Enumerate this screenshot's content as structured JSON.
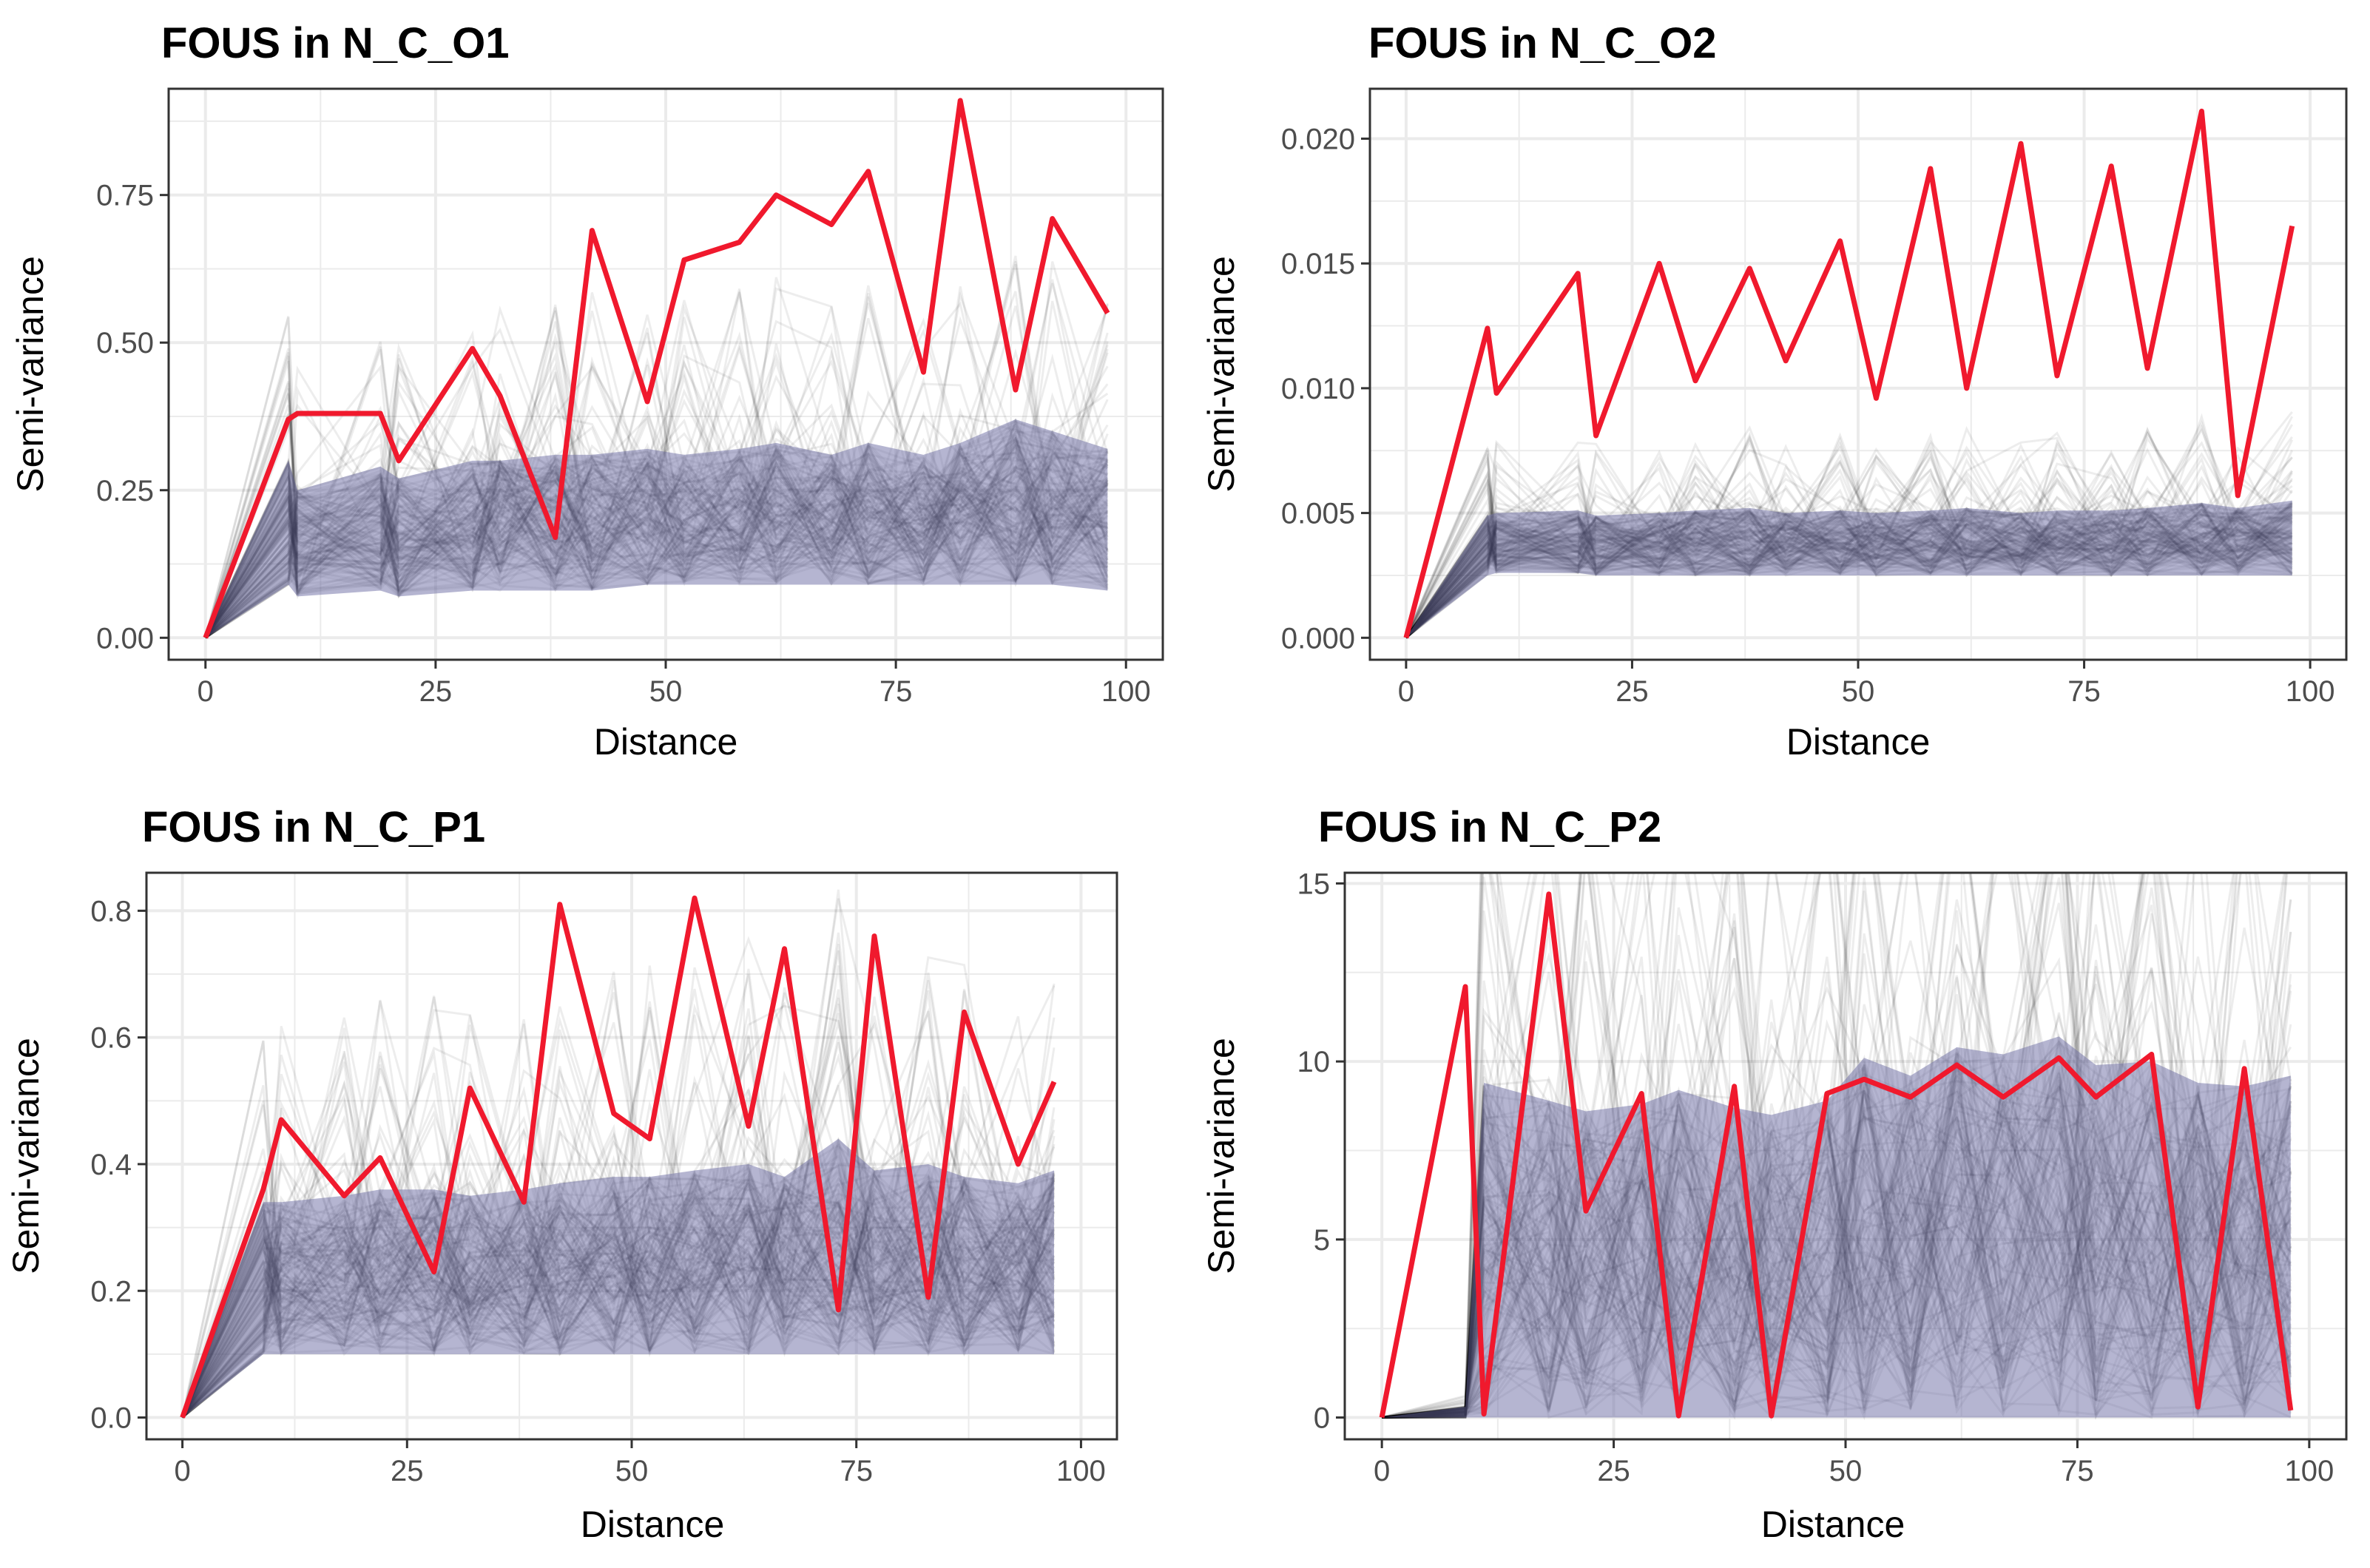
{
  "colors": {
    "observed_line": "#f0192d",
    "envelope_fill": "#6b6ba3",
    "simulation_line": "#000000",
    "grid": "#ebebeb",
    "panel_border": "#333333"
  },
  "chart_data": [
    {
      "type": "line",
      "title": "FOUS in N_C_O1",
      "xlabel": "Distance",
      "ylabel": "Semi-variance",
      "xlim": [
        0,
        100
      ],
      "ylim": [
        0,
        0.93
      ],
      "xticks": [
        0,
        25,
        50,
        75,
        100
      ],
      "xtick_labels": [
        "0",
        "25",
        "50",
        "75",
        "100"
      ],
      "yticks": [
        0,
        0.25,
        0.5,
        0.75
      ],
      "ytick_labels": [
        "0.00",
        "0.25",
        "0.50",
        "0.75"
      ],
      "grid": true,
      "series": [
        {
          "role": "observed",
          "x": [
            0,
            9,
            10,
            19,
            21,
            29,
            32,
            38,
            42,
            48,
            52,
            58,
            62,
            68,
            72,
            78,
            82,
            88,
            92,
            98
          ],
          "y": [
            0,
            0.37,
            0.38,
            0.38,
            0.3,
            0.49,
            0.41,
            0.17,
            0.69,
            0.4,
            0.64,
            0.67,
            0.75,
            0.7,
            0.79,
            0.45,
            0.91,
            0.42,
            0.71,
            0.55
          ]
        },
        {
          "role": "envelope",
          "x": [
            0,
            9,
            10,
            19,
            21,
            29,
            32,
            38,
            42,
            48,
            52,
            58,
            62,
            68,
            72,
            78,
            82,
            88,
            92,
            98
          ],
          "y_low": [
            0,
            0.09,
            0.07,
            0.08,
            0.07,
            0.08,
            0.08,
            0.08,
            0.08,
            0.09,
            0.09,
            0.09,
            0.09,
            0.09,
            0.09,
            0.09,
            0.09,
            0.09,
            0.09,
            0.08
          ],
          "y_high": [
            0,
            0.3,
            0.25,
            0.29,
            0.27,
            0.3,
            0.3,
            0.31,
            0.31,
            0.32,
            0.31,
            0.32,
            0.33,
            0.31,
            0.33,
            0.31,
            0.33,
            0.37,
            0.35,
            0.32
          ]
        }
      ]
    },
    {
      "type": "line",
      "title": "FOUS in N_C_O2",
      "xlabel": "Distance",
      "ylabel": "Semi-variance",
      "xlim": [
        0,
        100
      ],
      "ylim": [
        0,
        0.022
      ],
      "xticks": [
        0,
        25,
        50,
        75,
        100
      ],
      "xtick_labels": [
        "0",
        "25",
        "50",
        "75",
        "100"
      ],
      "yticks": [
        0,
        0.005,
        0.01,
        0.015,
        0.02
      ],
      "ytick_labels": [
        "0.000",
        "0.005",
        "0.010",
        "0.015",
        "0.020"
      ],
      "grid": true,
      "series": [
        {
          "role": "observed",
          "x": [
            0,
            9,
            10,
            19,
            21,
            28,
            32,
            38,
            42,
            48,
            52,
            58,
            62,
            68,
            72,
            78,
            82,
            88,
            92,
            98
          ],
          "y": [
            0,
            0.0124,
            0.0098,
            0.0146,
            0.0081,
            0.015,
            0.0103,
            0.0148,
            0.0111,
            0.0159,
            0.0096,
            0.0188,
            0.01,
            0.0198,
            0.0105,
            0.0189,
            0.0108,
            0.0211,
            0.0057,
            0.0165
          ]
        },
        {
          "role": "envelope",
          "x": [
            0,
            9,
            10,
            19,
            21,
            28,
            32,
            38,
            42,
            48,
            52,
            58,
            62,
            68,
            72,
            78,
            82,
            88,
            92,
            98
          ],
          "y_low": [
            0,
            0.0025,
            0.0026,
            0.0026,
            0.0025,
            0.0025,
            0.0025,
            0.0025,
            0.0025,
            0.0025,
            0.0025,
            0.0025,
            0.0025,
            0.0025,
            0.0025,
            0.0025,
            0.0025,
            0.0025,
            0.0025,
            0.0025
          ],
          "y_high": [
            0,
            0.0049,
            0.005,
            0.0051,
            0.0049,
            0.005,
            0.0051,
            0.0052,
            0.005,
            0.0051,
            0.005,
            0.0051,
            0.0052,
            0.005,
            0.0051,
            0.0051,
            0.0052,
            0.0054,
            0.0052,
            0.0055
          ]
        }
      ]
    },
    {
      "type": "line",
      "title": "FOUS in N_C_P1",
      "xlabel": "Distance",
      "ylabel": "Semi-variance",
      "xlim": [
        0,
        100
      ],
      "ylim": [
        0,
        0.86
      ],
      "xticks": [
        0,
        25,
        50,
        75,
        100
      ],
      "xtick_labels": [
        "0",
        "25",
        "50",
        "75",
        "100"
      ],
      "yticks": [
        0,
        0.2,
        0.4,
        0.6,
        0.8
      ],
      "ytick_labels": [
        "0.0",
        "0.2",
        "0.4",
        "0.6",
        "0.8"
      ],
      "grid": true,
      "series": [
        {
          "role": "observed",
          "x": [
            0,
            9,
            11,
            18,
            22,
            28,
            32,
            38,
            42,
            48,
            52,
            57,
            63,
            67,
            73,
            77,
            83,
            87,
            93,
            97
          ],
          "y": [
            0,
            0.36,
            0.47,
            0.35,
            0.41,
            0.23,
            0.52,
            0.34,
            0.81,
            0.48,
            0.44,
            0.82,
            0.46,
            0.74,
            0.17,
            0.76,
            0.19,
            0.64,
            0.4,
            0.53
          ]
        },
        {
          "role": "envelope",
          "x": [
            0,
            9,
            11,
            18,
            22,
            28,
            32,
            38,
            42,
            48,
            52,
            57,
            63,
            67,
            73,
            77,
            83,
            87,
            93,
            97
          ],
          "y_low": [
            0,
            0.1,
            0.1,
            0.1,
            0.1,
            0.1,
            0.1,
            0.1,
            0.1,
            0.1,
            0.1,
            0.1,
            0.1,
            0.1,
            0.1,
            0.1,
            0.1,
            0.1,
            0.1,
            0.1
          ],
          "y_high": [
            0,
            0.34,
            0.34,
            0.35,
            0.36,
            0.36,
            0.35,
            0.36,
            0.37,
            0.38,
            0.38,
            0.39,
            0.4,
            0.38,
            0.44,
            0.39,
            0.4,
            0.38,
            0.37,
            0.39
          ]
        }
      ]
    },
    {
      "type": "line",
      "title": "FOUS in N_C_P2",
      "xlabel": "Distance",
      "ylabel": "Semi-variance",
      "xlim": [
        0,
        100
      ],
      "ylim": [
        0,
        15.3
      ],
      "xticks": [
        0,
        25,
        50,
        75,
        100
      ],
      "xtick_labels": [
        "0",
        "25",
        "50",
        "75",
        "100"
      ],
      "yticks": [
        0,
        5,
        10,
        15
      ],
      "ytick_labels": [
        "0",
        "5",
        "10",
        "15"
      ],
      "grid": true,
      "series": [
        {
          "role": "observed",
          "x": [
            0,
            9,
            11,
            18,
            22,
            28,
            32,
            38,
            42,
            48,
            52,
            57,
            62,
            67,
            73,
            77,
            83,
            88,
            93,
            98
          ],
          "y": [
            0,
            12.1,
            0.1,
            14.7,
            5.8,
            9.1,
            0.05,
            9.3,
            0.05,
            9.1,
            9.5,
            9.0,
            9.9,
            9.0,
            10.1,
            9.0,
            10.2,
            0.3,
            9.8,
            0.2
          ]
        },
        {
          "role": "envelope",
          "x": [
            0,
            9,
            11,
            18,
            22,
            28,
            32,
            38,
            42,
            48,
            52,
            57,
            62,
            67,
            73,
            77,
            83,
            88,
            93,
            98
          ],
          "y_low": [
            0,
            0,
            0,
            0,
            0,
            0,
            0,
            0,
            0,
            0,
            0,
            0,
            0,
            0,
            0,
            0,
            0,
            0,
            0,
            0
          ],
          "y_high": [
            0,
            0.3,
            9.4,
            8.9,
            8.6,
            8.8,
            9.2,
            8.7,
            8.5,
            8.9,
            10.1,
            9.6,
            10.4,
            10.2,
            10.7,
            9.9,
            10.0,
            9.4,
            9.3,
            9.6
          ]
        }
      ]
    }
  ]
}
